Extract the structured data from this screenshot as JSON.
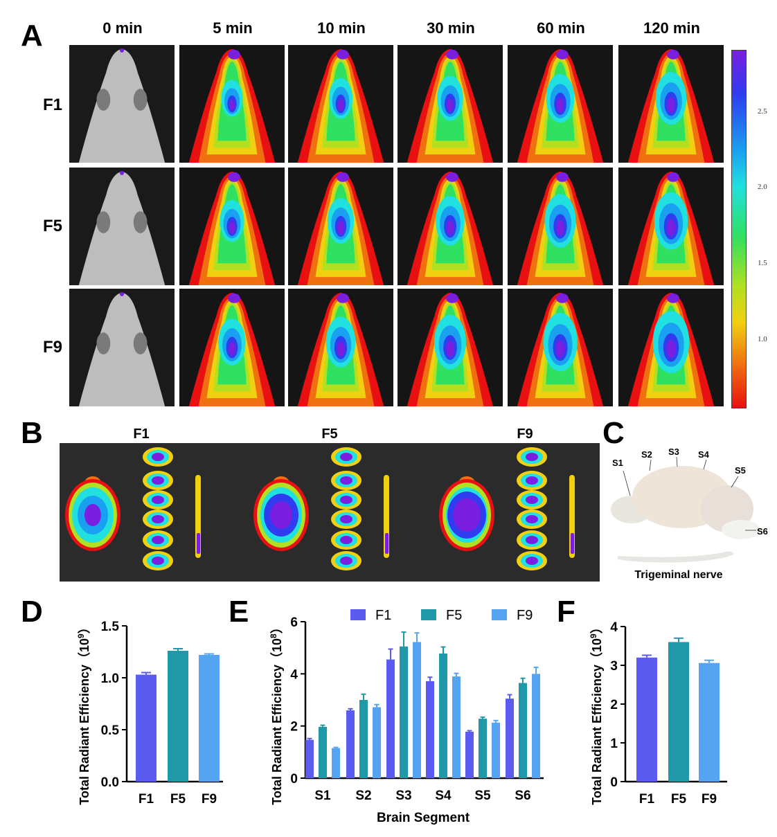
{
  "panels": {
    "a": "A",
    "b": "B",
    "c": "C",
    "d": "D",
    "e": "E",
    "f": "F"
  },
  "time_points": [
    "0 min",
    "5 min",
    "10 min",
    "30 min",
    "60 min",
    "120 min"
  ],
  "rows": [
    "F1",
    "F5",
    "F9"
  ],
  "colorbar": {
    "ticks": [
      "2.5",
      "2.0",
      "1.5",
      "1.0"
    ],
    "colors": [
      "#7a1fe0",
      "#2f3cf0",
      "#1aa0f0",
      "#20e0e0",
      "#30e060",
      "#b0e020",
      "#f0d010",
      "#f07010",
      "#e81010"
    ]
  },
  "panel_b": {
    "labels": [
      "F1",
      "F5",
      "F9"
    ]
  },
  "panel_c": {
    "segments": [
      "S1",
      "S2",
      "S3",
      "S4",
      "S5",
      "S6"
    ],
    "caption": "Trigeminal nerve"
  },
  "colors": {
    "F1": "#5b5bf0",
    "F5": "#1f98a8",
    "F9": "#55a4f2"
  },
  "chart_data": [
    {
      "id": "D",
      "type": "bar",
      "categories": [
        "F1",
        "F5",
        "F9"
      ],
      "values": [
        1.03,
        1.26,
        1.22
      ],
      "errors": [
        0.02,
        0.02,
        0.01
      ],
      "ylabel": "Total Radiant Efficiency（10⁹）",
      "ylabel_main": "Total Radiant Efficiency（10",
      "ylabel_exp": "9",
      "ylabel_close": "）",
      "ylim": [
        0,
        1.5
      ],
      "yticks": [
        "0.0",
        "0.5",
        "1.0",
        "1.5"
      ]
    },
    {
      "id": "E",
      "type": "bar",
      "categories": [
        "S1",
        "S2",
        "S3",
        "S4",
        "S5",
        "S6"
      ],
      "series": [
        {
          "name": "F1",
          "values": [
            1.47,
            2.6,
            4.55,
            3.72,
            1.78,
            3.05
          ],
          "errors": [
            0.05,
            0.06,
            0.4,
            0.15,
            0.04,
            0.15
          ]
        },
        {
          "name": "F5",
          "values": [
            1.97,
            3.0,
            5.05,
            4.78,
            2.28,
            3.65
          ],
          "errors": [
            0.06,
            0.22,
            0.55,
            0.25,
            0.06,
            0.18
          ]
        },
        {
          "name": "F9",
          "values": [
            1.15,
            2.72,
            5.22,
            3.9,
            2.13,
            4.0
          ],
          "errors": [
            0.03,
            0.1,
            0.35,
            0.12,
            0.08,
            0.25
          ]
        }
      ],
      "xlabel": "Brain Segment",
      "ylabel_main": "Total Radiant Efficiency（10",
      "ylabel_exp": "8",
      "ylabel_close": "）",
      "ylim": [
        0,
        6
      ],
      "yticks": [
        "0",
        "2",
        "4",
        "6"
      ]
    },
    {
      "id": "F",
      "type": "bar",
      "categories": [
        "F1",
        "F5",
        "F9"
      ],
      "values": [
        3.2,
        3.6,
        3.06
      ],
      "errors": [
        0.06,
        0.1,
        0.07
      ],
      "ylabel_main": "Total Radiant Efficiency（10",
      "ylabel_exp": "9",
      "ylabel_close": "）",
      "ylim": [
        0,
        4
      ],
      "yticks": [
        "0",
        "1",
        "2",
        "3",
        "4"
      ]
    }
  ]
}
